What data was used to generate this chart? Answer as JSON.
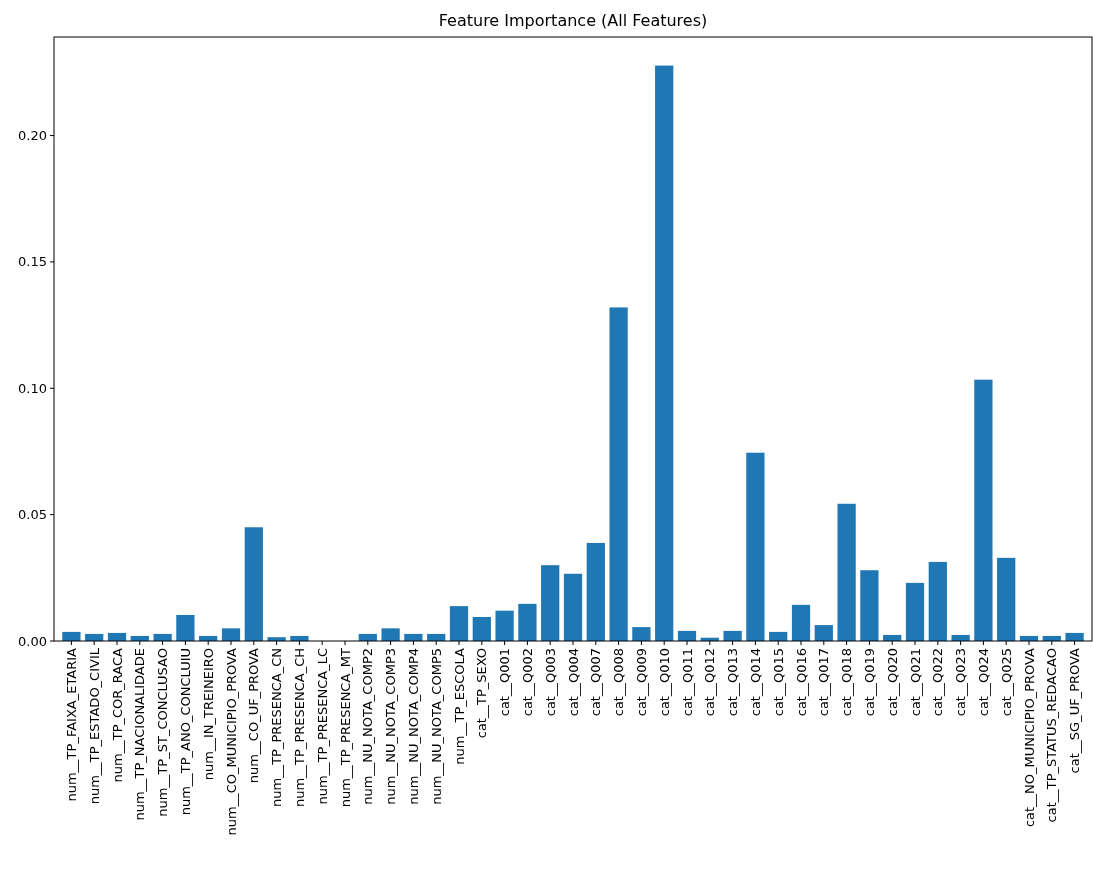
{
  "chart_data": {
    "type": "bar",
    "title": "Feature Importance (All Features)",
    "categories": [
      "num__TP_FAIXA_ETARIA",
      "num__TP_ESTADO_CIVIL",
      "num__TP_COR_RACA",
      "num__TP_NACIONALIDADE",
      "num__TP_ST_CONCLUSAO",
      "num__TP_ANO_CONCLUIU",
      "num__IN_TREINEIRO",
      "num__CO_MUNICIPIO_PROVA",
      "num__CO_UF_PROVA",
      "num__TP_PRESENCA_CN",
      "num__TP_PRESENCA_CH",
      "num__TP_PRESENCA_LC",
      "num__TP_PRESENCA_MT",
      "num__NU_NOTA_COMP2",
      "num__NU_NOTA_COMP3",
      "num__NU_NOTA_COMP4",
      "num__NU_NOTA_COMP5",
      "num__TP_ESCOLA",
      "cat__TP_SEXO",
      "cat__Q001",
      "cat__Q002",
      "cat__Q003",
      "cat__Q004",
      "cat__Q007",
      "cat__Q008",
      "cat__Q009",
      "cat__Q010",
      "cat__Q011",
      "cat__Q012",
      "cat__Q013",
      "cat__Q014",
      "cat__Q015",
      "cat__Q016",
      "cat__Q017",
      "cat__Q018",
      "cat__Q019",
      "cat__Q020",
      "cat__Q021",
      "cat__Q022",
      "cat__Q023",
      "cat__Q024",
      "cat__Q025",
      "cat__NO_MUNICIPIO_PROVA",
      "cat__TP_STATUS_REDACAO",
      "cat__SG_UF_PROVA"
    ],
    "values": [
      0.0036,
      0.0028,
      0.0032,
      0.002,
      0.0028,
      0.0103,
      0.002,
      0.005,
      0.045,
      0.0015,
      0.002,
      0,
      0,
      0.0028,
      0.005,
      0.0028,
      0.0028,
      0.0138,
      0.0095,
      0.012,
      0.0147,
      0.03,
      0.0266,
      0.0388,
      0.132,
      0.0055,
      0.2277,
      0.004,
      0.0013,
      0.004,
      0.0745,
      0.0036,
      0.0143,
      0.0063,
      0.0543,
      0.028,
      0.0024,
      0.023,
      0.0313,
      0.0024,
      0.1034,
      0.0329,
      0.002,
      0.002,
      0.0032
    ],
    "color": "#1f77b4",
    "ylim": [
      0,
      0.239
    ],
    "yticks": [
      {
        "value": 0,
        "label": "0.00"
      },
      {
        "value": 0.05,
        "label": "0.05"
      },
      {
        "value": 0.1,
        "label": "0.10"
      },
      {
        "value": 0.15,
        "label": "0.15"
      },
      {
        "value": 0.2,
        "label": "0.20"
      }
    ],
    "grid": false
  }
}
